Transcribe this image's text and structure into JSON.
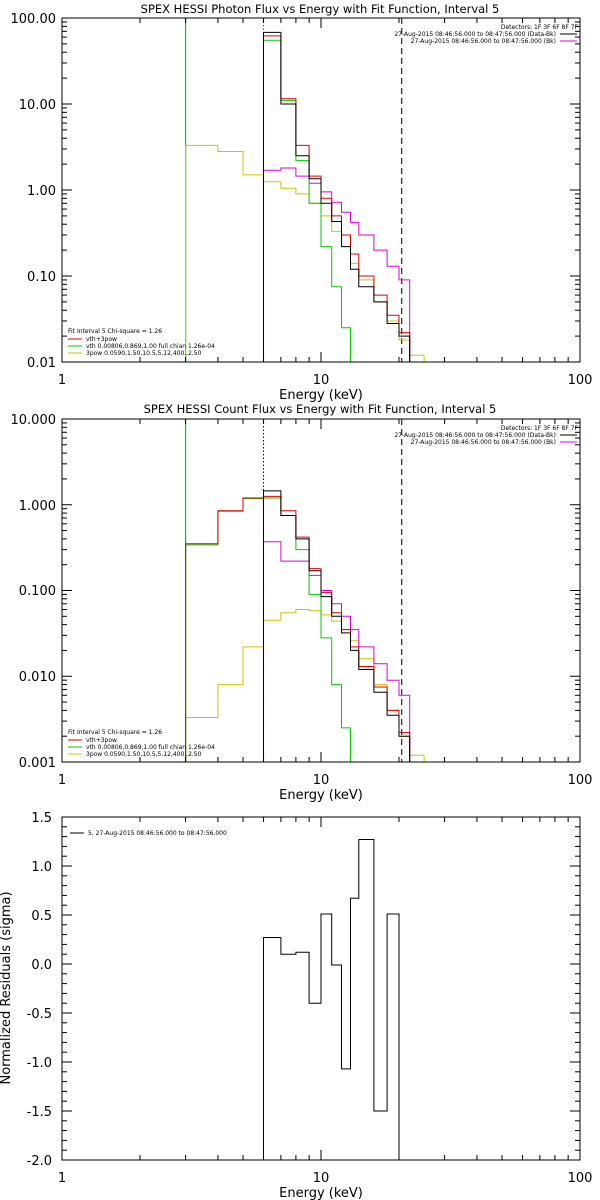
{
  "chart_data": [
    {
      "type": "line",
      "title": "SPEX HESSI Photon Flux vs Energy with Fit Function, Interval 5",
      "xlabel": "Energy (keV)",
      "ylabel": "",
      "x_scale": "log",
      "y_scale": "log",
      "xlim": [
        1,
        100
      ],
      "ylim": [
        0.01,
        100
      ],
      "xticks": [
        "1",
        "10",
        "100"
      ],
      "yticks": [
        "0.01",
        "0.10",
        "1.00",
        "10.00",
        "100.00"
      ],
      "vlines": [
        {
          "x": 6,
          "style": "dotted",
          "color": "#dd00dd"
        },
        {
          "x": 20.5,
          "style": "dashed",
          "color": "#000000"
        }
      ],
      "legend_topright": {
        "title": "Detectors: 1F 3F 6F 8F 7F",
        "entries": [
          {
            "label": "27-Aug-2015 08:46:56.000 to 08:47:56.000 (Data-Bk)",
            "color": "#000000"
          },
          {
            "label": "27-Aug-2015 08:46:56.000 to 08:47:56.000 (Bk)",
            "color": "#dd00dd"
          }
        ]
      },
      "legend_bottomleft": {
        "title": "Fit Interval 5   Chi-square = 1.26",
        "entries": [
          {
            "label": "vth+3pow",
            "color": "#e00000"
          },
          {
            "label": "vth 0.00806,0.869,1.00   full chian 1.26e-04",
            "color": "#00cc00"
          },
          {
            "label": "3pow 0.0590,1.50,10.5,5.12,400.,2.50",
            "color": "#d4c000"
          }
        ]
      },
      "edges": [
        3.0,
        4.0,
        5.0,
        6.0,
        7.0,
        8.0,
        9.0,
        10.0,
        11.0,
        12.0,
        13.0,
        14.0,
        16.0,
        18.0,
        20.0,
        22.0,
        25.0
      ],
      "series": [
        {
          "name": "Data-Bk",
          "color": "#000000",
          "bins": [
            [
              6,
              7,
              68
            ],
            [
              7,
              8,
              10
            ],
            [
              8,
              9,
              2.5
            ],
            [
              9,
              10,
              1.35
            ],
            [
              10,
              11,
              0.7
            ],
            [
              11,
              12,
              0.43
            ],
            [
              12,
              13,
              0.22
            ],
            [
              13,
              14,
              0.12
            ],
            [
              14,
              16,
              0.075
            ],
            [
              16,
              18,
              0.05
            ],
            [
              18,
              20,
              0.028
            ],
            [
              20,
              22,
              0.02
            ]
          ]
        },
        {
          "name": "vth+3pow",
          "color": "#e00000",
          "bins": [
            [
              6,
              7,
              62
            ],
            [
              7,
              8,
              11.5
            ],
            [
              8,
              9,
              3.3
            ],
            [
              9,
              10,
              1.45
            ],
            [
              10,
              11,
              0.8
            ],
            [
              11,
              12,
              0.5
            ],
            [
              12,
              13,
              0.3
            ],
            [
              13,
              14,
              0.18
            ],
            [
              14,
              16,
              0.1
            ],
            [
              16,
              18,
              0.06
            ],
            [
              18,
              20,
              0.035
            ],
            [
              20,
              22,
              0.022
            ]
          ]
        },
        {
          "name": "vth",
          "color": "#00cc00",
          "bins": [
            [
              6,
              7,
              55
            ],
            [
              7,
              8,
              11
            ],
            [
              8,
              9,
              2.2
            ],
            [
              9,
              10,
              0.7
            ],
            [
              10,
              11,
              0.22
            ],
            [
              11,
              12,
              0.075
            ],
            [
              12,
              13,
              0.025
            ],
            [
              13,
              14,
              0.01
            ]
          ]
        },
        {
          "name": "3pow",
          "color": "#d4c000",
          "bins": [
            [
              3,
              4,
              3.3
            ],
            [
              4,
              5,
              2.8
            ],
            [
              5,
              6,
              1.5
            ],
            [
              6,
              7,
              1.25
            ],
            [
              7,
              8,
              1.05
            ],
            [
              8,
              9,
              0.9
            ],
            [
              9,
              10,
              0.7
            ],
            [
              10,
              11,
              0.5
            ],
            [
              11,
              12,
              0.33
            ],
            [
              12,
              13,
              0.22
            ],
            [
              13,
              14,
              0.14
            ],
            [
              14,
              16,
              0.09
            ],
            [
              16,
              18,
              0.05
            ],
            [
              18,
              20,
              0.03
            ],
            [
              20,
              22,
              0.018
            ],
            [
              22,
              25,
              0.012
            ]
          ]
        },
        {
          "name": "Bk",
          "color": "#dd00dd",
          "bins": [
            [
              6,
              7,
              1.7
            ],
            [
              7,
              8,
              1.8
            ],
            [
              8,
              9,
              1.45
            ],
            [
              9,
              10,
              1.2
            ],
            [
              10,
              11,
              0.95
            ],
            [
              11,
              12,
              0.72
            ],
            [
              12,
              13,
              0.55
            ],
            [
              13,
              14,
              0.42
            ],
            [
              14,
              16,
              0.3
            ],
            [
              16,
              18,
              0.2
            ],
            [
              18,
              20,
              0.13
            ],
            [
              20,
              22,
              0.09
            ]
          ]
        }
      ],
      "green_wall_x": 3.0
    },
    {
      "type": "line",
      "title": "SPEX HESSI Count Flux vs Energy with Fit Function, Interval 5",
      "xlabel": "Energy (keV)",
      "ylabel": "",
      "x_scale": "log",
      "y_scale": "log",
      "xlim": [
        1,
        100
      ],
      "ylim": [
        0.001,
        10
      ],
      "xticks": [
        "1",
        "10",
        "100"
      ],
      "yticks": [
        "0.001",
        "0.010",
        "0.100",
        "1.000",
        "10.000"
      ],
      "vlines": [
        {
          "x": 6,
          "style": "dotted",
          "color": "#000000"
        },
        {
          "x": 20.5,
          "style": "dashed",
          "color": "#000000"
        }
      ],
      "legend_topright": {
        "title": "Detectors: 1F 3F 6F 8F 7F",
        "entries": [
          {
            "label": "27-Aug-2015 08:46:56.000 to 08:47:56.000 (Data-Bk)",
            "color": "#000000"
          },
          {
            "label": "27-Aug-2015 08:46:56.000 to 08:47:56.000 (Bk)",
            "color": "#dd00dd"
          }
        ]
      },
      "legend_bottomleft": {
        "title": "Fit Interval 5   Chi-square = 1.26",
        "entries": [
          {
            "label": "vth+3pow",
            "color": "#e00000"
          },
          {
            "label": "vth 0.00806,0.869,1.00   full chian 1.26e-04",
            "color": "#00cc00"
          },
          {
            "label": "3pow 0.0590,1.50,10.5,5.12,400.,2.50",
            "color": "#d4c000"
          }
        ]
      },
      "series": [
        {
          "name": "Data-Bk",
          "color": "#000000",
          "bins": [
            [
              6,
              7,
              1.45
            ],
            [
              7,
              8,
              0.75
            ],
            [
              8,
              9,
              0.4
            ],
            [
              9,
              10,
              0.17
            ],
            [
              10,
              11,
              0.085
            ],
            [
              11,
              12,
              0.05
            ],
            [
              12,
              13,
              0.032
            ],
            [
              13,
              14,
              0.02
            ],
            [
              14,
              16,
              0.012
            ],
            [
              16,
              18,
              0.0065
            ],
            [
              18,
              20,
              0.0035
            ],
            [
              20,
              22,
              0.002
            ]
          ]
        },
        {
          "name": "vth+3pow",
          "color": "#e00000",
          "bins": [
            [
              3,
              4,
              0.35
            ],
            [
              4,
              5,
              0.85
            ],
            [
              5,
              6,
              1.2
            ],
            [
              6,
              7,
              1.25
            ],
            [
              7,
              8,
              0.85
            ],
            [
              8,
              9,
              0.42
            ],
            [
              9,
              10,
              0.18
            ],
            [
              10,
              11,
              0.095
            ],
            [
              11,
              12,
              0.055
            ],
            [
              12,
              13,
              0.035
            ],
            [
              13,
              14,
              0.022
            ],
            [
              14,
              16,
              0.013
            ],
            [
              16,
              18,
              0.0075
            ],
            [
              18,
              20,
              0.004
            ],
            [
              20,
              22,
              0.0022
            ]
          ]
        },
        {
          "name": "vth",
          "color": "#00cc00",
          "bins": [
            [
              3,
              4,
              0.34
            ],
            [
              4,
              5,
              0.84
            ],
            [
              5,
              6,
              1.18
            ],
            [
              6,
              7,
              1.2
            ],
            [
              7,
              8,
              0.75
            ],
            [
              8,
              9,
              0.3
            ],
            [
              9,
              10,
              0.09
            ],
            [
              10,
              11,
              0.028
            ],
            [
              11,
              12,
              0.008
            ],
            [
              12,
              13,
              0.0025
            ],
            [
              13,
              14,
              0.001
            ]
          ]
        },
        {
          "name": "3pow",
          "color": "#d4c000",
          "bins": [
            [
              3,
              4,
              0.0033
            ],
            [
              4,
              5,
              0.008
            ],
            [
              5,
              6,
              0.022
            ],
            [
              6,
              7,
              0.045
            ],
            [
              7,
              8,
              0.055
            ],
            [
              8,
              9,
              0.06
            ],
            [
              9,
              10,
              0.058
            ],
            [
              10,
              11,
              0.052
            ],
            [
              11,
              12,
              0.044
            ],
            [
              12,
              13,
              0.035
            ],
            [
              13,
              14,
              0.026
            ],
            [
              14,
              16,
              0.016
            ],
            [
              16,
              18,
              0.008
            ],
            [
              18,
              20,
              0.004
            ],
            [
              20,
              22,
              0.002
            ],
            [
              22,
              25,
              0.0012
            ]
          ]
        },
        {
          "name": "Bk",
          "color": "#dd00dd",
          "bins": [
            [
              6,
              7,
              0.37
            ],
            [
              7,
              8,
              0.22
            ],
            [
              8,
              9,
              0.22
            ],
            [
              9,
              10,
              0.15
            ],
            [
              10,
              11,
              0.1
            ],
            [
              11,
              12,
              0.07
            ],
            [
              12,
              13,
              0.05
            ],
            [
              13,
              14,
              0.035
            ],
            [
              14,
              16,
              0.022
            ],
            [
              16,
              18,
              0.014
            ],
            [
              18,
              20,
              0.009
            ],
            [
              20,
              22,
              0.006
            ]
          ]
        }
      ],
      "green_wall_x": 3.0
    },
    {
      "type": "line",
      "title": "",
      "xlabel": "Energy (keV)",
      "ylabel": "Normalized Residuals (sigma)",
      "x_scale": "log",
      "y_scale": "linear",
      "xlim": [
        1,
        100
      ],
      "ylim": [
        -2.0,
        1.5
      ],
      "xticks": [
        "1",
        "10",
        "100"
      ],
      "yticks": [
        "-2.0",
        "-1.5",
        "-1.0",
        "-0.5",
        "0.0",
        "0.5",
        "1.0",
        "1.5"
      ],
      "legend": {
        "label": "5, 27-Aug-2015 08:46:56.000 to 08:47:56.000",
        "color": "#000000"
      },
      "series": [
        {
          "name": "",
          "color": "#000000",
          "bins": [
            [
              6,
              7,
              0.27
            ],
            [
              7,
              8,
              0.1
            ],
            [
              8,
              9,
              0.12
            ],
            [
              9,
              10,
              -0.4
            ],
            [
              10,
              11,
              0.51
            ],
            [
              11,
              12,
              -0.01
            ],
            [
              12,
              13,
              -1.07
            ],
            [
              13,
              14,
              0.67
            ],
            [
              14,
              16,
              1.27
            ],
            [
              16,
              18,
              -1.5
            ],
            [
              18,
              20,
              0.51
            ]
          ]
        }
      ]
    }
  ]
}
